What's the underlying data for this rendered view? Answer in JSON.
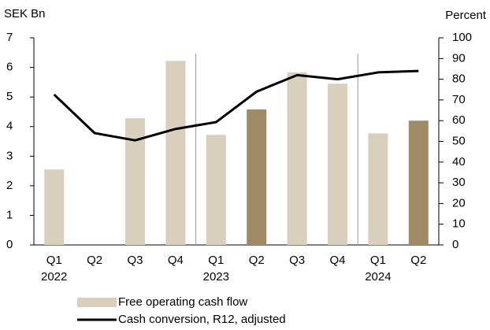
{
  "chart_data": {
    "type": "bar",
    "y_label": "SEK Bn",
    "y2_label": "Percent",
    "categories": [
      "Q1",
      "Q2",
      "Q3",
      "Q4",
      "Q1",
      "Q2",
      "Q3",
      "Q4",
      "Q1",
      "Q2"
    ],
    "year_labels": [
      "2022",
      null,
      null,
      null,
      "2023",
      null,
      null,
      null,
      "2024",
      null
    ],
    "series": [
      {
        "name": "Free operating cash flow",
        "type": "bar",
        "colors": [
          "#d9cfbd",
          "#d9cfbd",
          "#d9cfbd",
          "#d9cfbd",
          "#d9cfbd",
          "#a08a64",
          "#d9cfbd",
          "#d9cfbd",
          "#d9cfbd",
          "#a08a64"
        ],
        "values": [
          2.55,
          0,
          4.28,
          6.22,
          3.72,
          4.58,
          5.83,
          5.45,
          3.77,
          4.2
        ]
      },
      {
        "name": "Cash conversion, R12, adjusted",
        "type": "line",
        "axis": "y2",
        "color": "#000000",
        "values": [
          72.6,
          54,
          50.5,
          56,
          59.3,
          74,
          82,
          80,
          83.3,
          84
        ]
      }
    ],
    "ylim": [
      0,
      7
    ],
    "yticks": [
      0,
      1,
      2,
      3,
      4,
      5,
      6,
      7
    ],
    "y2lim": [
      0,
      100
    ],
    "y2ticks": [
      0,
      10,
      20,
      30,
      40,
      50,
      60,
      70,
      80,
      90,
      100
    ]
  }
}
